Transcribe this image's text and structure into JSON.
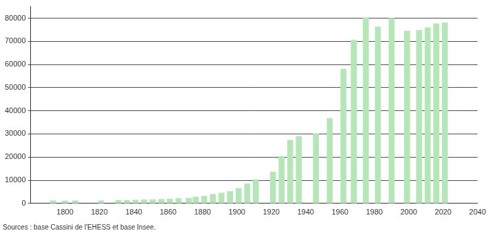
{
  "chart_data": {
    "type": "bar",
    "caption": "Sources : base Cassini de l'EHESS et base Insee.",
    "x": [
      1793,
      1800,
      1806,
      1821,
      1831,
      1836,
      1841,
      1846,
      1851,
      1856,
      1861,
      1866,
      1872,
      1876,
      1881,
      1886,
      1891,
      1896,
      1901,
      1906,
      1911,
      1921,
      1926,
      1931,
      1936,
      1946,
      1954,
      1962,
      1968,
      1975,
      1982,
      1990,
      1999,
      2006,
      2011,
      2016,
      2021
    ],
    "values": [
      1200,
      1100,
      1200,
      1200,
      1300,
      1300,
      1500,
      1600,
      1700,
      1800,
      1900,
      2100,
      2300,
      2800,
      3100,
      3900,
      4500,
      5200,
      6500,
      8500,
      10300,
      13600,
      20300,
      27300,
      28900,
      30200,
      36700,
      58000,
      70500,
      80300,
      76300,
      80000,
      74400,
      74800,
      75900,
      77600,
      78000
    ],
    "color": "#b5e6b5",
    "xlim": [
      1780,
      2040
    ],
    "xticks": [
      1800,
      1820,
      1840,
      1860,
      1880,
      1900,
      1920,
      1940,
      1960,
      1980,
      2000,
      2020,
      2040
    ],
    "ylim": [
      0,
      85000
    ],
    "yticks": [
      0,
      10000,
      20000,
      30000,
      40000,
      50000,
      60000,
      70000,
      80000
    ],
    "grid": true
  }
}
